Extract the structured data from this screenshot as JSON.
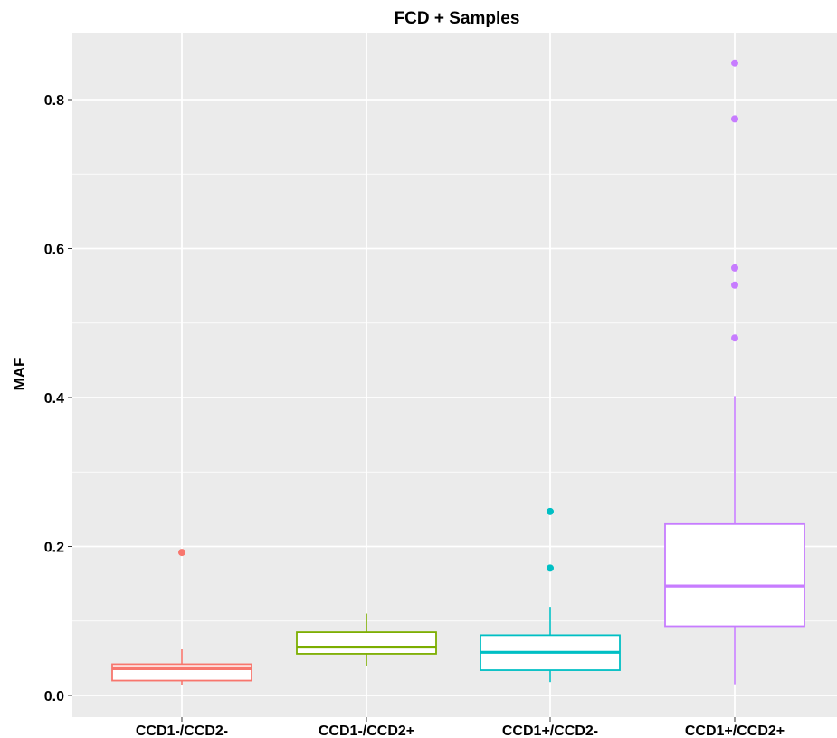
{
  "chart_data": {
    "type": "boxplot",
    "title": "FCD + Samples",
    "xlabel": "",
    "ylabel": "MAF",
    "ylim": [
      -0.03,
      0.89
    ],
    "yticks": [
      0.0,
      0.2,
      0.4,
      0.6,
      0.8
    ],
    "ytick_labels": [
      "0.0",
      "0.2",
      "0.4",
      "0.6",
      "0.8"
    ],
    "grid": true,
    "categories": [
      "CCD1-/CCD2-",
      "CCD1-/CCD2+",
      "CCD1+/CCD2-",
      "CCD1+/CCD2+"
    ],
    "series": [
      {
        "color": "#F8766D",
        "whisker_low": 0.014,
        "q1": 0.02,
        "median": 0.036,
        "q3": 0.042,
        "whisker_high": 0.062,
        "outliers": [
          0.192
        ]
      },
      {
        "color": "#7CAE00",
        "whisker_low": 0.04,
        "q1": 0.056,
        "median": 0.065,
        "q3": 0.085,
        "whisker_high": 0.11,
        "outliers": []
      },
      {
        "color": "#00BFC4",
        "whisker_low": 0.018,
        "q1": 0.034,
        "median": 0.058,
        "q3": 0.081,
        "whisker_high": 0.119,
        "outliers": [
          0.171,
          0.247
        ]
      },
      {
        "color": "#C77CFF",
        "whisker_low": 0.015,
        "q1": 0.093,
        "median": 0.147,
        "q3": 0.23,
        "whisker_high": 0.402,
        "outliers": [
          0.48,
          0.551,
          0.574,
          0.774,
          0.849
        ]
      }
    ]
  }
}
